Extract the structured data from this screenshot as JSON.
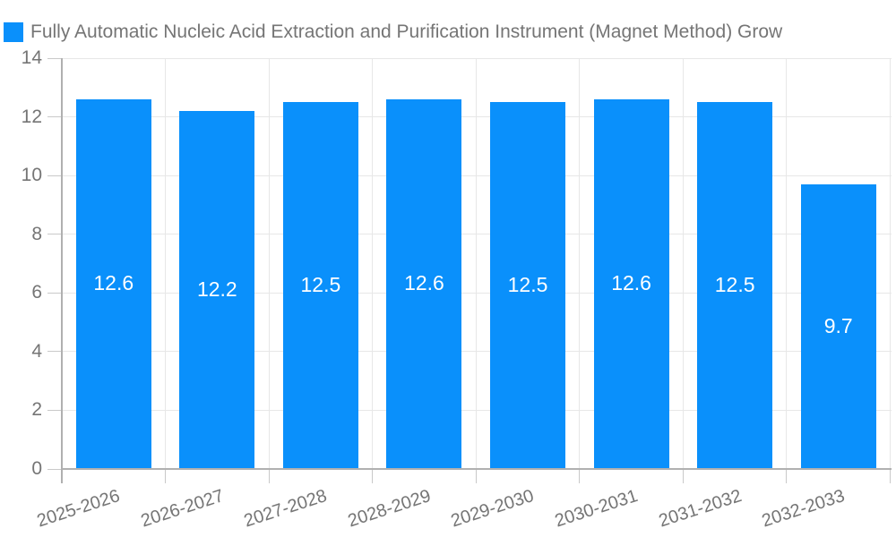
{
  "chart_data": {
    "type": "bar",
    "title": "Fully Automatic Nucleic Acid Extraction and Purification Instrument (Magnet Method) Grow",
    "categories": [
      "2025-2026",
      "2026-2027",
      "2027-2028",
      "2028-2029",
      "2029-2030",
      "2030-2031",
      "2031-2032",
      "2032-2033"
    ],
    "values": [
      12.6,
      12.2,
      12.5,
      12.6,
      12.5,
      12.6,
      12.5,
      9.7
    ],
    "bar_labels": [
      "12.6",
      "12.2",
      "12.5",
      "12.6",
      "12.5",
      "12.6",
      "12.5",
      "9.7"
    ],
    "xlabel": "",
    "ylabel": "",
    "ylim": [
      0,
      14
    ],
    "y_ticks": [
      0,
      2,
      4,
      6,
      8,
      10,
      12,
      14
    ],
    "y_tick_labels": [
      "0",
      "2",
      "4",
      "6",
      "8",
      "10",
      "12",
      "14"
    ],
    "grid": "on",
    "legend_position": "top-left",
    "colors": {
      "bar": "#0a90fb",
      "value_label": "#ffffff",
      "axis_line": "#b0b0b0",
      "gridline": "#e7e7e7",
      "tick": "#c9c9c9",
      "text": "#757575",
      "background": "#ffffff"
    }
  }
}
